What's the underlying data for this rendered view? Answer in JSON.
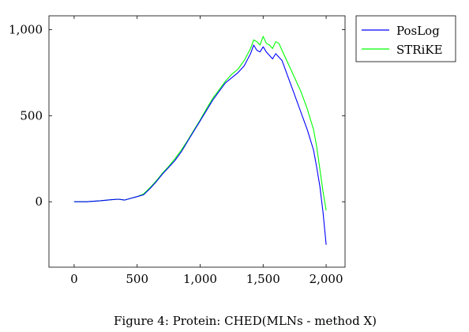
{
  "caption": "Figure 4: Protein: CHED(MLNs - method X)",
  "chart_data": {
    "type": "line",
    "title": "",
    "xlabel": "",
    "ylabel": "",
    "xlim": [
      -200,
      2150
    ],
    "ylim": [
      -380,
      1080
    ],
    "xticks": [
      0,
      500,
      1000,
      1500,
      2000
    ],
    "xtick_labels": [
      "0",
      "500",
      "1,000",
      "1,500",
      "2,000"
    ],
    "yticks": [
      0,
      500,
      1000
    ],
    "ytick_labels": [
      "0",
      "500",
      "1,000"
    ],
    "grid": false,
    "legend": {
      "position": "outside-top-right"
    },
    "series": [
      {
        "name": "PosLog",
        "color": "#0000ff",
        "x": [
          0,
          100,
          200,
          300,
          350,
          400,
          450,
          500,
          550,
          600,
          650,
          700,
          750,
          800,
          850,
          900,
          950,
          1000,
          1050,
          1100,
          1150,
          1200,
          1250,
          1300,
          1350,
          1400,
          1425,
          1450,
          1475,
          1500,
          1525,
          1550,
          1575,
          1600,
          1625,
          1650,
          1700,
          1750,
          1800,
          1850,
          1900,
          1925,
          1950,
          1975,
          2000
        ],
        "y": [
          0,
          0,
          5,
          12,
          15,
          10,
          20,
          30,
          40,
          75,
          115,
          160,
          200,
          240,
          290,
          350,
          410,
          470,
          530,
          590,
          640,
          690,
          720,
          750,
          790,
          860,
          910,
          880,
          870,
          900,
          870,
          850,
          830,
          860,
          840,
          820,
          720,
          620,
          520,
          420,
          300,
          200,
          90,
          -60,
          -250
        ]
      },
      {
        "name": "STRiKE",
        "color": "#00ff00",
        "x": [
          0,
          100,
          200,
          300,
          350,
          400,
          450,
          500,
          550,
          600,
          650,
          700,
          750,
          800,
          850,
          900,
          950,
          1000,
          1050,
          1100,
          1150,
          1200,
          1250,
          1300,
          1350,
          1400,
          1425,
          1450,
          1475,
          1500,
          1525,
          1550,
          1575,
          1600,
          1625,
          1650,
          1700,
          1750,
          1800,
          1850,
          1900,
          1925,
          1950,
          1975,
          2000
        ],
        "y": [
          0,
          0,
          5,
          12,
          15,
          10,
          20,
          30,
          45,
          80,
          120,
          165,
          205,
          250,
          300,
          355,
          415,
          475,
          540,
          600,
          650,
          700,
          740,
          770,
          820,
          890,
          940,
          930,
          910,
          960,
          920,
          910,
          890,
          930,
          920,
          880,
          800,
          720,
          640,
          540,
          420,
          320,
          190,
          60,
          -50
        ]
      }
    ]
  }
}
